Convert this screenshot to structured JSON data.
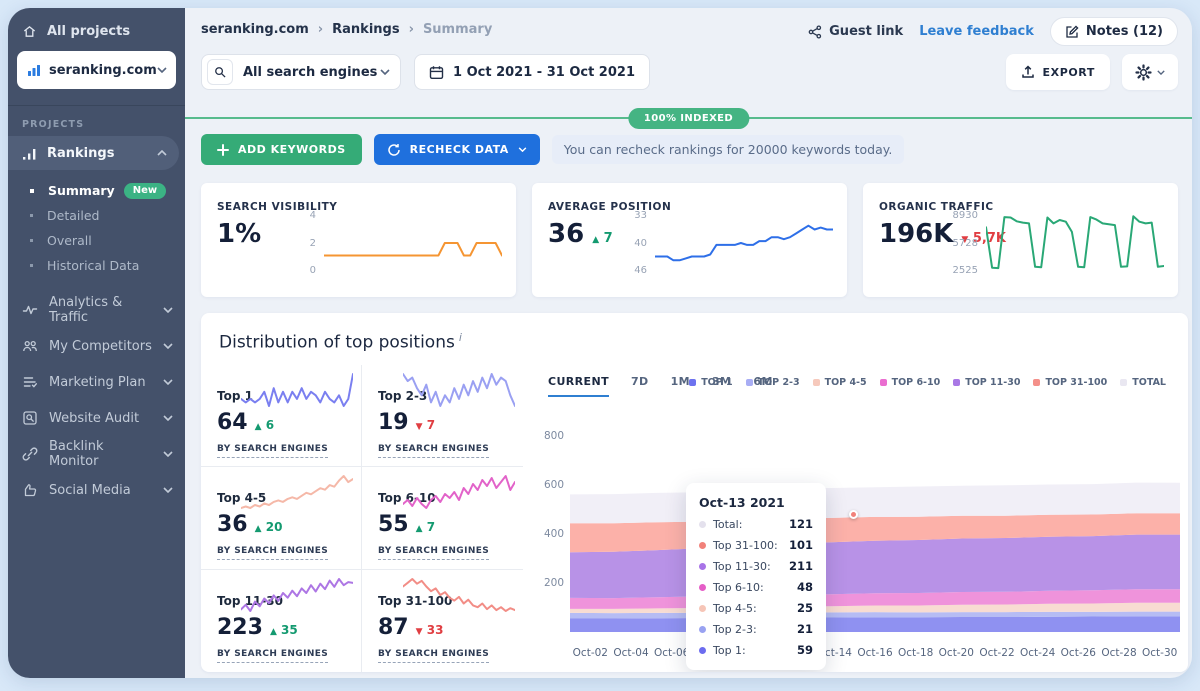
{
  "sidebar": {
    "all_projects": "All projects",
    "project": "seranking.com",
    "section_label": "PROJECTS",
    "rankings": {
      "label": "Rankings",
      "subitems": [
        {
          "label": "Summary",
          "badge": "New",
          "active": true
        },
        {
          "label": "Detailed",
          "active": false
        },
        {
          "label": "Overall",
          "active": false
        },
        {
          "label": "Historical Data",
          "active": false
        }
      ]
    },
    "groups": [
      {
        "label": "Analytics & Traffic",
        "icon": "analytics-icon"
      },
      {
        "label": "My Competitors",
        "icon": "competitors-icon"
      },
      {
        "label": "Marketing Plan",
        "icon": "marketing-plan-icon"
      },
      {
        "label": "Website Audit",
        "icon": "website-audit-icon"
      },
      {
        "label": "Backlink Monitor",
        "icon": "backlink-icon"
      },
      {
        "label": "Social Media",
        "icon": "social-media-icon"
      }
    ]
  },
  "header": {
    "breadcrumb": [
      "seranking.com",
      "Rankings",
      "Summary"
    ],
    "guest_link": "Guest link",
    "leave_feedback": "Leave feedback",
    "notes": "Notes (12)"
  },
  "controls": {
    "search_engines": "All search engines",
    "date_range": "1 Oct 2021 - 31 Oct 2021",
    "export_label": "EXPORT",
    "indexed_badge": "100% INDEXED",
    "add_keywords": "ADD KEYWORDS",
    "recheck_data": "RECHECK DATA",
    "recheck_note": "You can recheck rankings for 20000 keywords today."
  },
  "stat_cards": [
    {
      "label": "SEARCH VISIBILITY",
      "value": "1%",
      "delta": "",
      "delta_dir": ""
    },
    {
      "label": "AVERAGE POSITION",
      "value": "36",
      "delta": "7",
      "delta_dir": "up"
    },
    {
      "label": "ORGANIC TRAFFIC",
      "value": "196K",
      "delta": "5,7K",
      "delta_dir": "down"
    }
  ],
  "distribution": {
    "title": "Distribution of top positions",
    "info": "i",
    "by_search_engines": "BY SEARCH ENGINES",
    "cards": [
      {
        "label": "Top 1",
        "value": "64",
        "delta": "6",
        "dir": "up"
      },
      {
        "label": "Top 2-3",
        "value": "19",
        "delta": "7",
        "dir": "down"
      },
      {
        "label": "Top 4-5",
        "value": "36",
        "delta": "20",
        "dir": "up"
      },
      {
        "label": "Top 6-10",
        "value": "55",
        "delta": "7",
        "dir": "up"
      },
      {
        "label": "Top 11-30",
        "value": "223",
        "delta": "35",
        "dir": "up"
      },
      {
        "label": "Top 31-100",
        "value": "87",
        "delta": "33",
        "dir": "down"
      }
    ],
    "tabs": [
      "CURRENT",
      "7D",
      "1M",
      "3M",
      "6M"
    ],
    "active_tab": "CURRENT",
    "legend": [
      {
        "label": "TOP 1",
        "color": "#6d72ef"
      },
      {
        "label": "TOP 2-3",
        "color": "#a8adf4"
      },
      {
        "label": "TOP 4-5",
        "color": "#f6c9bc"
      },
      {
        "label": "TOP 6-10",
        "color": "#ea6ed0"
      },
      {
        "label": "TOP 11-30",
        "color": "#a978e5"
      },
      {
        "label": "TOP 31-100",
        "color": "#f4908a"
      },
      {
        "label": "TOTAL",
        "color": "#e9e7f1"
      }
    ]
  },
  "tooltip": {
    "title": "Oct-13 2021",
    "rows": [
      {
        "label": "Total:",
        "value": "121",
        "color": "#e4e1ed"
      },
      {
        "label": "Top 31-100:",
        "value": "101",
        "color": "#f1817a"
      },
      {
        "label": "Top 11-30:",
        "value": "211",
        "color": "#a873e7"
      },
      {
        "label": "Top 6-10:",
        "value": "48",
        "color": "#e55ec7"
      },
      {
        "label": "Top 4-5:",
        "value": "25",
        "color": "#f6c5b7"
      },
      {
        "label": "Top 2-3:",
        "value": "21",
        "color": "#99a2f1"
      },
      {
        "label": "Top 1:",
        "value": "59",
        "color": "#6c6cef"
      }
    ]
  },
  "chart_data": {
    "main": {
      "type": "area",
      "stacked": true,
      "title": "Distribution of top positions",
      "x": [
        "Oct-02",
        "Oct-04",
        "Oct-06",
        "Oct-08",
        "Oct-10",
        "Oct-12",
        "Oct-14",
        "Oct-16",
        "Oct-18",
        "Oct-20",
        "Oct-22",
        "Oct-24",
        "Oct-26",
        "Oct-28",
        "Oct-30"
      ],
      "ylim": [
        0,
        860
      ],
      "yticks": [
        "200",
        "400",
        "600",
        "800"
      ],
      "grid": false,
      "legend_position": "top-right",
      "series": [
        {
          "name": "Top 1",
          "color": "#8f91f1",
          "values": [
            55,
            55,
            56,
            57,
            58,
            59,
            59,
            60,
            60,
            61,
            61,
            62,
            63,
            64,
            64
          ]
        },
        {
          "name": "Top 2-3",
          "color": "#b6bcf4",
          "values": [
            23,
            22,
            22,
            21,
            21,
            21,
            21,
            21,
            20,
            20,
            20,
            20,
            19,
            19,
            19
          ]
        },
        {
          "name": "Top 4-5",
          "color": "#f8dcd2",
          "values": [
            16,
            17,
            18,
            20,
            21,
            24,
            25,
            27,
            28,
            30,
            31,
            33,
            34,
            36,
            36
          ]
        },
        {
          "name": "Top 6-10",
          "color": "#ef93db",
          "values": [
            45,
            44,
            46,
            47,
            47,
            48,
            49,
            50,
            51,
            52,
            52,
            53,
            54,
            55,
            55
          ]
        },
        {
          "name": "Top 11-30",
          "color": "#b892e7",
          "values": [
            186,
            189,
            192,
            196,
            203,
            210,
            212,
            214,
            216,
            218,
            219,
            220,
            221,
            223,
            223
          ]
        },
        {
          "name": "Top 31-100",
          "color": "#fcb1a9",
          "values": [
            118,
            116,
            113,
            109,
            104,
            101,
            99,
            97,
            95,
            93,
            91,
            90,
            88,
            87,
            87
          ]
        },
        {
          "name": "Total",
          "color": "#f1eff7",
          "values": [
            118,
            119,
            120,
            120,
            121,
            121,
            122,
            121,
            123,
            122,
            124,
            123,
            124,
            125,
            124
          ]
        }
      ]
    },
    "stat_cards": [
      {
        "name": "Search visibility",
        "type": "line",
        "color": "#f59532",
        "yticks": [
          "4",
          "2",
          "0"
        ],
        "ylim": [
          0,
          4
        ],
        "values": [
          1,
          1,
          1,
          1,
          1,
          1,
          1,
          1,
          1,
          1,
          1,
          1,
          1,
          1,
          1,
          1,
          1,
          1,
          1,
          2,
          2,
          2,
          1,
          1,
          2,
          2,
          2,
          2,
          1
        ]
      },
      {
        "name": "Average position",
        "type": "line",
        "color": "#2e6fe8",
        "yticks": [
          "33",
          "40",
          "46"
        ],
        "ylim": [
          33,
          46
        ],
        "invert": true,
        "values": [
          43,
          43,
          43,
          44,
          44,
          43.5,
          43,
          43,
          43,
          42.5,
          40,
          40,
          40,
          40,
          39.5,
          40,
          40,
          39,
          39,
          38,
          38,
          38.5,
          38,
          37,
          36,
          35,
          36,
          35.5,
          36,
          36
        ]
      },
      {
        "name": "Organic traffic",
        "type": "line",
        "color": "#2aa876",
        "yticks": [
          "8930",
          "5728",
          "2525"
        ],
        "ylim": [
          2525,
          8930
        ],
        "values": [
          7600,
          2800,
          2750,
          8800,
          8750,
          8300,
          8150,
          8050,
          2900,
          2850,
          8750,
          8050,
          8450,
          8250,
          7050,
          2900,
          2850,
          8800,
          8500,
          8050,
          7950,
          7850,
          2900,
          2950,
          8900,
          8250,
          8050,
          8150,
          2900,
          3000
        ]
      }
    ],
    "distribution_sparklines": [
      {
        "name": "Top 1",
        "type": "line",
        "color": "#7a7ff0",
        "values": [
          58,
          57,
          58,
          57,
          58,
          60,
          56,
          61,
          57,
          60,
          57,
          60,
          58,
          61,
          58,
          60,
          59,
          57,
          60,
          58,
          57,
          59,
          56,
          58,
          65
        ]
      },
      {
        "name": "Top 2-3",
        "type": "line",
        "color": "#9aa0f2",
        "values": [
          27,
          25,
          26,
          23,
          21,
          24,
          19,
          22,
          18,
          21,
          19,
          23,
          20,
          24,
          21,
          25,
          22,
          26,
          23,
          27,
          24,
          26,
          25,
          21,
          18
        ]
      },
      {
        "name": "Top 4-5",
        "type": "line",
        "color": "#f5b8a8",
        "values": [
          15,
          16,
          15,
          17,
          16,
          18,
          17,
          19,
          20,
          19,
          21,
          22,
          21,
          23,
          25,
          24,
          26,
          28,
          27,
          30,
          29,
          33,
          36,
          32,
          34
        ]
      },
      {
        "name": "Top 6-10",
        "type": "line",
        "color": "#e263c9",
        "values": [
          44,
          46,
          43,
          47,
          44,
          42,
          46,
          48,
          45,
          49,
          47,
          50,
          46,
          52,
          49,
          54,
          51,
          56,
          53,
          57,
          52,
          55,
          58,
          51,
          55
        ]
      },
      {
        "name": "Top 11-30",
        "type": "line",
        "color": "#ad76e4",
        "values": [
          188,
          194,
          186,
          198,
          192,
          202,
          196,
          206,
          199,
          209,
          203,
          212,
          205,
          215,
          209,
          219,
          211,
          221,
          214,
          225,
          217,
          227,
          219,
          223,
          222
        ]
      },
      {
        "name": "Top 31-100",
        "type": "line",
        "color": "#f28d86",
        "values": [
          112,
          116,
          120,
          115,
          118,
          112,
          107,
          110,
          103,
          106,
          100,
          97,
          101,
          94,
          98,
          92,
          90,
          94,
          88,
          92,
          87,
          90,
          86,
          89,
          87
        ]
      }
    ]
  }
}
